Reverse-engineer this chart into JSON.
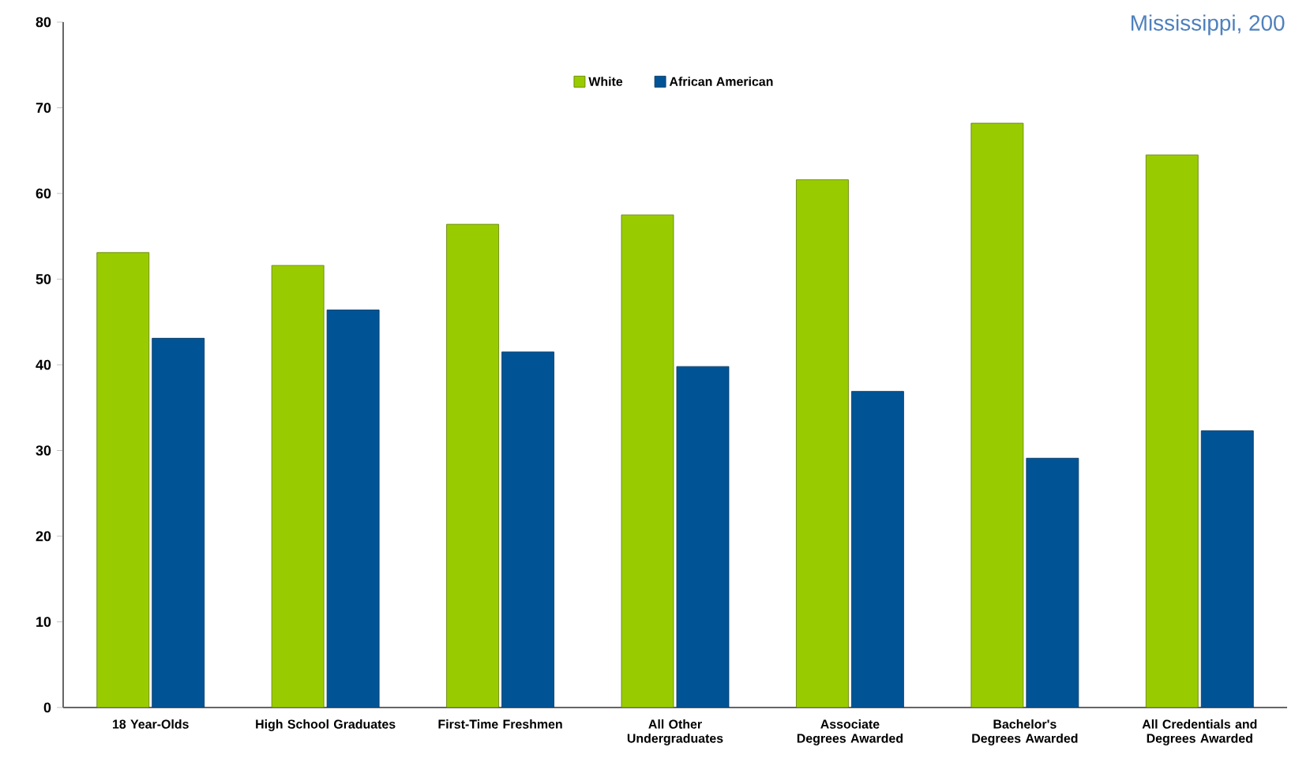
{
  "chart_data": {
    "type": "bar",
    "title": "Mississippi, 200",
    "categories": [
      "18 Year-Olds",
      "High School Graduates",
      "First-Time Freshmen",
      "All Other Undergraduates",
      "Associate Degrees Awarded",
      "Bachelor's Degrees Awarded",
      "All Credentials and Degrees Awarded"
    ],
    "series": [
      {
        "name": "White",
        "color": "#99cc00",
        "values": [
          53.1,
          51.6,
          56.4,
          57.5,
          61.6,
          68.2,
          64.5
        ]
      },
      {
        "name": "African American",
        "color": "#005496",
        "values": [
          43.1,
          46.4,
          41.5,
          39.8,
          36.9,
          29.1,
          32.3
        ]
      }
    ],
    "ylim": [
      0,
      80
    ],
    "yticks": [
      0,
      10,
      20,
      30,
      40,
      50,
      60,
      70,
      80
    ],
    "legend": "top",
    "grid": false
  }
}
